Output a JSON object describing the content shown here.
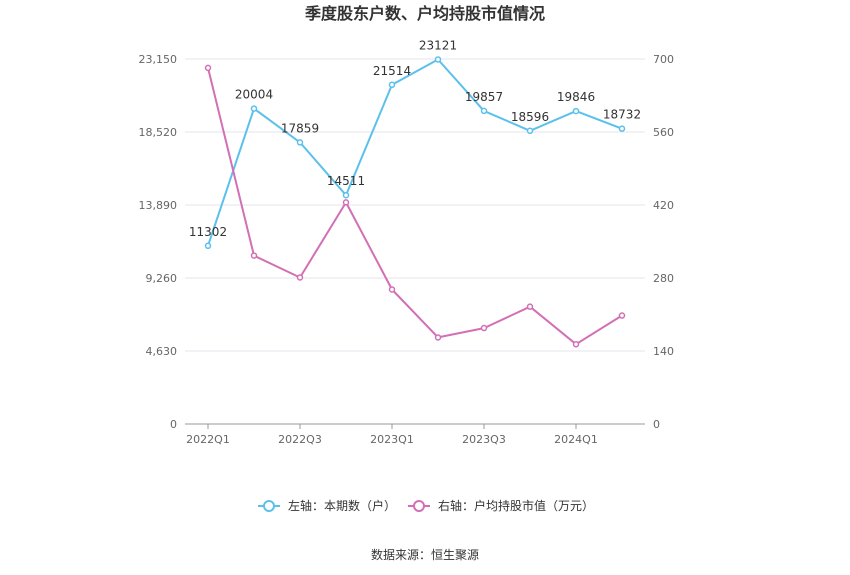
{
  "chart_data": {
    "type": "line",
    "title": "季度股东户数、户均持股市值情况",
    "x": [
      "2022Q1",
      "2022Q2",
      "2022Q3",
      "2022Q4",
      "2023Q1",
      "2023Q2",
      "2023Q3",
      "2023Q4",
      "2024Q1",
      "2024Q2"
    ],
    "x_tick_labels": [
      "2022Q1",
      "2022Q3",
      "2023Q1",
      "2023Q3",
      "2024Q1"
    ],
    "left_axis": {
      "ylim": [
        0,
        23150
      ],
      "tick_labels": [
        "0",
        "4,630",
        "9,260",
        "13,890",
        "18,520",
        "23,150"
      ]
    },
    "right_axis": {
      "ylim": [
        0,
        700
      ],
      "tick_labels": [
        "0",
        "140",
        "280",
        "420",
        "560",
        "700"
      ]
    },
    "series": [
      {
        "name": "左轴：本期数（户）",
        "axis": "left",
        "color": "#5bc0eb",
        "values": [
          11302,
          20004,
          17859,
          14511,
          21514,
          23121,
          19857,
          18596,
          19846,
          18732
        ],
        "labels": [
          "11302",
          "20004",
          "17859",
          "14511",
          "21514",
          "23121",
          "19857",
          "18596",
          "19846",
          "18732"
        ]
      },
      {
        "name": "右轴：户均持股市值（万元）",
        "axis": "right",
        "color": "#d36fb4",
        "values": [
          683,
          323,
          281,
          425,
          258,
          166,
          184,
          225,
          153,
          208
        ]
      }
    ],
    "grid": true,
    "legend_position": "bottom"
  },
  "source": "数据来源：恒生聚源"
}
